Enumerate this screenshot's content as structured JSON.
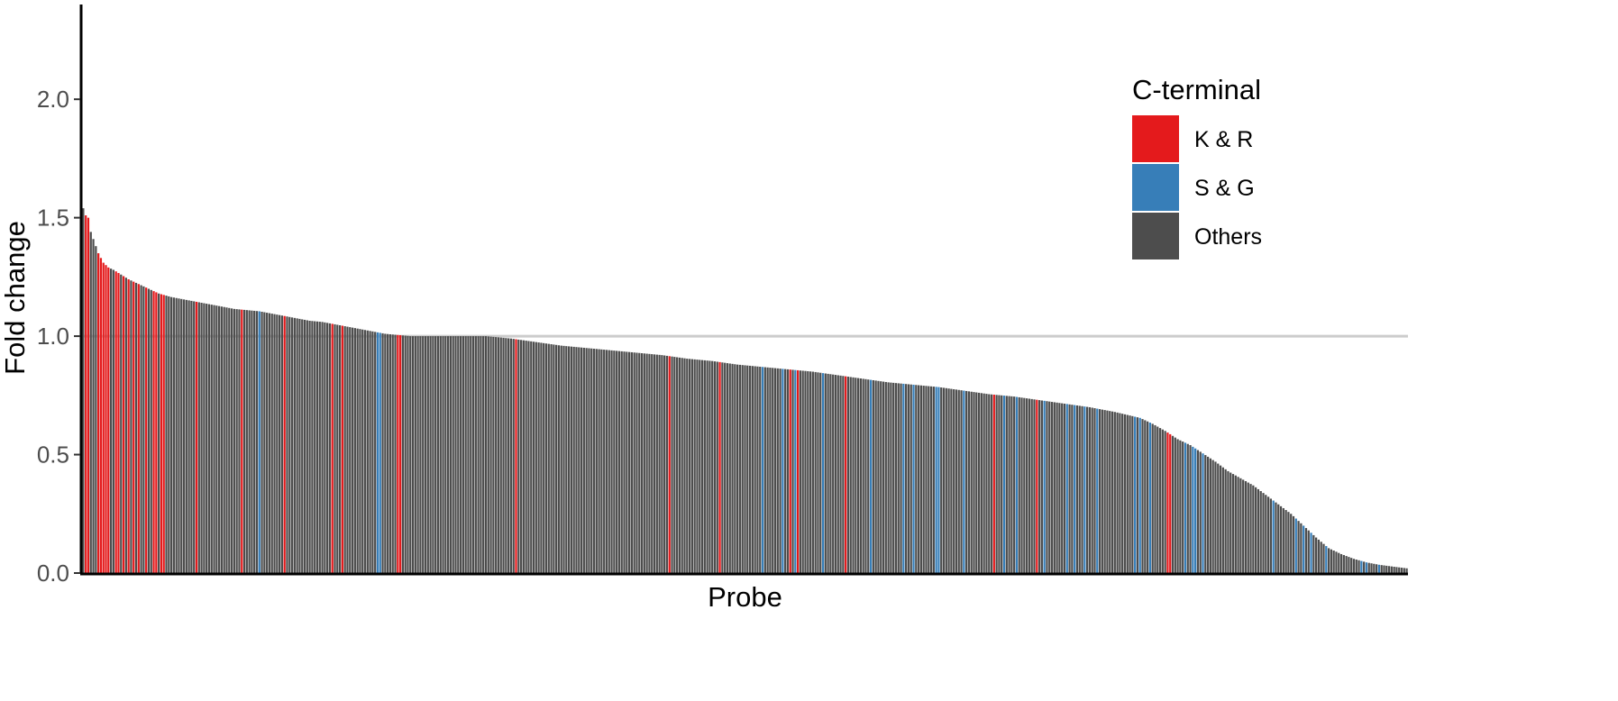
{
  "chart_data": {
    "type": "bar",
    "xlabel": "Probe",
    "ylabel": "Fold change",
    "ylim": [
      0,
      2.4
    ],
    "yticks": [
      0.0,
      0.5,
      1.0,
      1.5,
      2.0
    ],
    "ytick_labels": [
      "0.0",
      "0.5",
      "1.0",
      "1.5",
      "2.0"
    ],
    "reference_line": 1.0,
    "legend": {
      "title": "C-terminal",
      "position": "top-right",
      "entries": [
        {
          "key": "KR",
          "label": "K & R",
          "color": "#e41a1c"
        },
        {
          "key": "SG",
          "label": "S & G",
          "color": "#377eb8"
        },
        {
          "key": "Others",
          "label": "Others",
          "color": "#4d4d4d"
        }
      ]
    },
    "profile": [
      [
        0,
        1.54
      ],
      [
        1,
        1.51
      ],
      [
        2,
        1.5
      ],
      [
        3,
        1.44
      ],
      [
        4,
        1.41
      ],
      [
        5,
        1.38
      ],
      [
        6,
        1.35
      ],
      [
        8,
        1.31
      ],
      [
        10,
        1.29
      ],
      [
        12,
        1.28
      ],
      [
        15,
        1.26
      ],
      [
        18,
        1.24
      ],
      [
        22,
        1.22
      ],
      [
        26,
        1.2
      ],
      [
        30,
        1.18
      ],
      [
        35,
        1.165
      ],
      [
        40,
        1.155
      ],
      [
        45,
        1.145
      ],
      [
        50,
        1.135
      ],
      [
        55,
        1.125
      ],
      [
        60,
        1.115
      ],
      [
        65,
        1.11
      ],
      [
        70,
        1.105
      ],
      [
        75,
        1.095
      ],
      [
        80,
        1.085
      ],
      [
        85,
        1.075
      ],
      [
        90,
        1.065
      ],
      [
        95,
        1.06
      ],
      [
        100,
        1.05
      ],
      [
        105,
        1.04
      ],
      [
        110,
        1.03
      ],
      [
        115,
        1.02
      ],
      [
        120,
        1.01
      ],
      [
        125,
        1.005
      ],
      [
        130,
        1.0
      ],
      [
        160,
        1.0
      ],
      [
        170,
        0.99
      ],
      [
        180,
        0.975
      ],
      [
        190,
        0.96
      ],
      [
        200,
        0.95
      ],
      [
        210,
        0.94
      ],
      [
        220,
        0.93
      ],
      [
        230,
        0.92
      ],
      [
        240,
        0.905
      ],
      [
        250,
        0.895
      ],
      [
        260,
        0.88
      ],
      [
        270,
        0.87
      ],
      [
        280,
        0.86
      ],
      [
        290,
        0.85
      ],
      [
        300,
        0.835
      ],
      [
        310,
        0.82
      ],
      [
        320,
        0.805
      ],
      [
        330,
        0.795
      ],
      [
        340,
        0.785
      ],
      [
        350,
        0.77
      ],
      [
        360,
        0.755
      ],
      [
        370,
        0.745
      ],
      [
        380,
        0.73
      ],
      [
        390,
        0.715
      ],
      [
        400,
        0.7
      ],
      [
        410,
        0.68
      ],
      [
        420,
        0.655
      ],
      [
        425,
        0.63
      ],
      [
        430,
        0.6
      ],
      [
        435,
        0.565
      ],
      [
        440,
        0.54
      ],
      [
        445,
        0.505
      ],
      [
        450,
        0.47
      ],
      [
        455,
        0.43
      ],
      [
        460,
        0.4
      ],
      [
        465,
        0.37
      ],
      [
        470,
        0.33
      ],
      [
        475,
        0.29
      ],
      [
        480,
        0.25
      ],
      [
        485,
        0.2
      ],
      [
        490,
        0.15
      ],
      [
        495,
        0.105
      ],
      [
        500,
        0.08
      ],
      [
        505,
        0.06
      ],
      [
        510,
        0.045
      ],
      [
        515,
        0.035
      ],
      [
        520,
        0.028
      ],
      [
        526,
        0.02
      ]
    ],
    "highlighted": {
      "KR": [
        1,
        2,
        6,
        7,
        8,
        9,
        10,
        13,
        14,
        16,
        18,
        20,
        22,
        25,
        28,
        29,
        31,
        32,
        45,
        63,
        80,
        99,
        103,
        125,
        126,
        172,
        233,
        253,
        281,
        284,
        303,
        362,
        379,
        431,
        432
      ],
      "SG": [
        70,
        117,
        118,
        270,
        278,
        283,
        294,
        313,
        326,
        330,
        339,
        340,
        350,
        366,
        371,
        382,
        391,
        394,
        398,
        403,
        418,
        420,
        424,
        438,
        441,
        442,
        445,
        473,
        482,
        485,
        488,
        494,
        508,
        510,
        515
      ]
    }
  }
}
